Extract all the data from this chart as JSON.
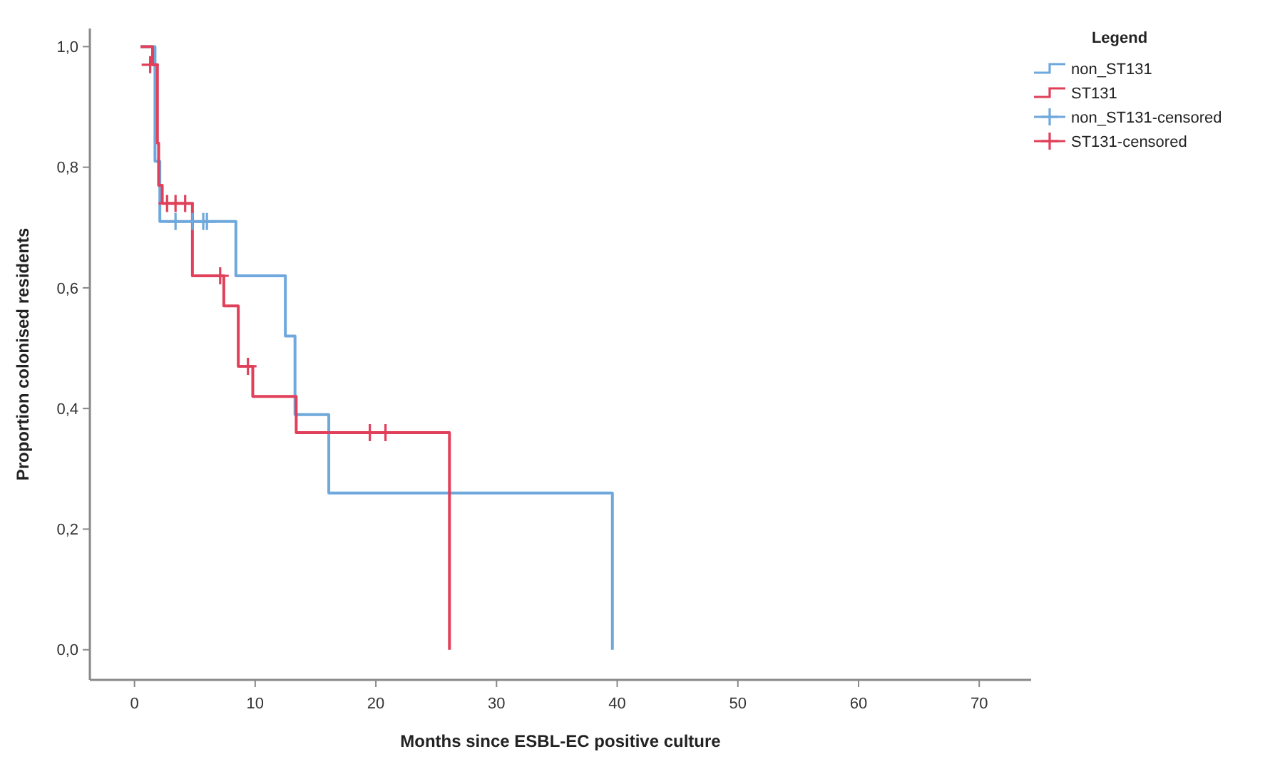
{
  "chart_data": {
    "type": "step",
    "xlabel": "Months since ESBL-EC positive culture",
    "ylabel": "Proportion colonised residents",
    "legend_title": "Legend",
    "legend": "top right",
    "grid": false,
    "xlim": [
      -3.7,
      74.3
    ],
    "xticks": [
      0,
      10,
      20,
      30,
      40,
      50,
      60,
      70
    ],
    "ylim": [
      -0.05,
      1.03
    ],
    "yticks": [
      {
        "value": 0,
        "label": "0,0"
      },
      {
        "value": 0.2,
        "label": "0,2"
      },
      {
        "value": 0.4,
        "label": "0,4"
      },
      {
        "value": 0.6,
        "label": "0,6"
      },
      {
        "value": 0.8,
        "label": "0,8"
      },
      {
        "value": 1,
        "label": "1,0"
      }
    ],
    "series": [
      {
        "name": "non_ST131",
        "color": "#6fa8dc",
        "x": [
          0.5,
          1.7,
          2.1,
          8.4,
          12.5,
          13.3,
          16.1,
          39.6
        ],
        "values": [
          1,
          0.81,
          0.71,
          0.62,
          0.52,
          0.39,
          0.26,
          0
        ]
      },
      {
        "name": "ST131",
        "color": "#e0405a",
        "x": [
          0.5,
          1.5,
          1.9,
          2.0,
          2.3,
          4.8,
          7.4,
          8.6,
          9.8,
          13.4,
          26.1
        ],
        "values": [
          1,
          0.97,
          0.84,
          0.77,
          0.74,
          0.62,
          0.57,
          0.47,
          0.42,
          0.36,
          0
        ]
      },
      {
        "name": "non_ST131-censored",
        "type": "scatter",
        "marker": "cross",
        "color": "#6fa8dc",
        "x": [
          3.4,
          4.8,
          5.7,
          6.0
        ],
        "values": [
          0.71,
          0.71,
          0.71,
          0.71
        ]
      },
      {
        "name": "ST131-censored",
        "type": "scatter",
        "marker": "cross",
        "color": "#e0405a",
        "x": [
          1.3,
          2.7,
          3.4,
          4.2,
          7.1,
          9.4,
          19.5,
          20.8
        ],
        "values": [
          0.97,
          0.74,
          0.74,
          0.74,
          0.62,
          0.47,
          0.36,
          0.36
        ]
      }
    ]
  }
}
